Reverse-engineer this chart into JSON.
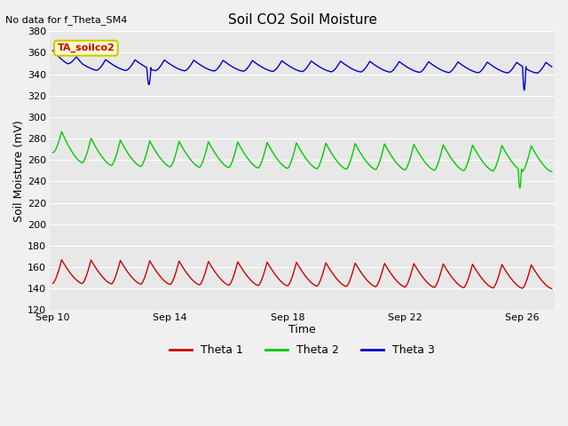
{
  "title": "Soil CO2 Soil Moisture",
  "no_data_text": "No data for f_Theta_SM4",
  "annotation_text": "TA_soilco2",
  "xlabel": "Time",
  "ylabel": "Soil Moisture (mV)",
  "ylim": [
    120,
    380
  ],
  "yticks": [
    120,
    140,
    160,
    180,
    200,
    220,
    240,
    260,
    280,
    300,
    320,
    340,
    360,
    380
  ],
  "x_tick_labels": [
    "Sep 10",
    "Sep 14",
    "Sep 18",
    "Sep 22",
    "Sep 26"
  ],
  "x_tick_positions": [
    0,
    4,
    8,
    12,
    16
  ],
  "total_days": 17,
  "bg_color": "#e8e8e8",
  "fig_color": "#f0f0f0",
  "theta1_color": "#cc0000",
  "theta2_color": "#00cc00",
  "theta3_color": "#0000cc",
  "legend_entries": [
    "Theta 1",
    "Theta 2",
    "Theta 3"
  ],
  "theta1_base": 145,
  "theta1_amp": 22,
  "theta2_base": 255,
  "theta2_amp": 24,
  "theta3_base": 344,
  "theta3_amp": 10,
  "points_per_day": 200
}
